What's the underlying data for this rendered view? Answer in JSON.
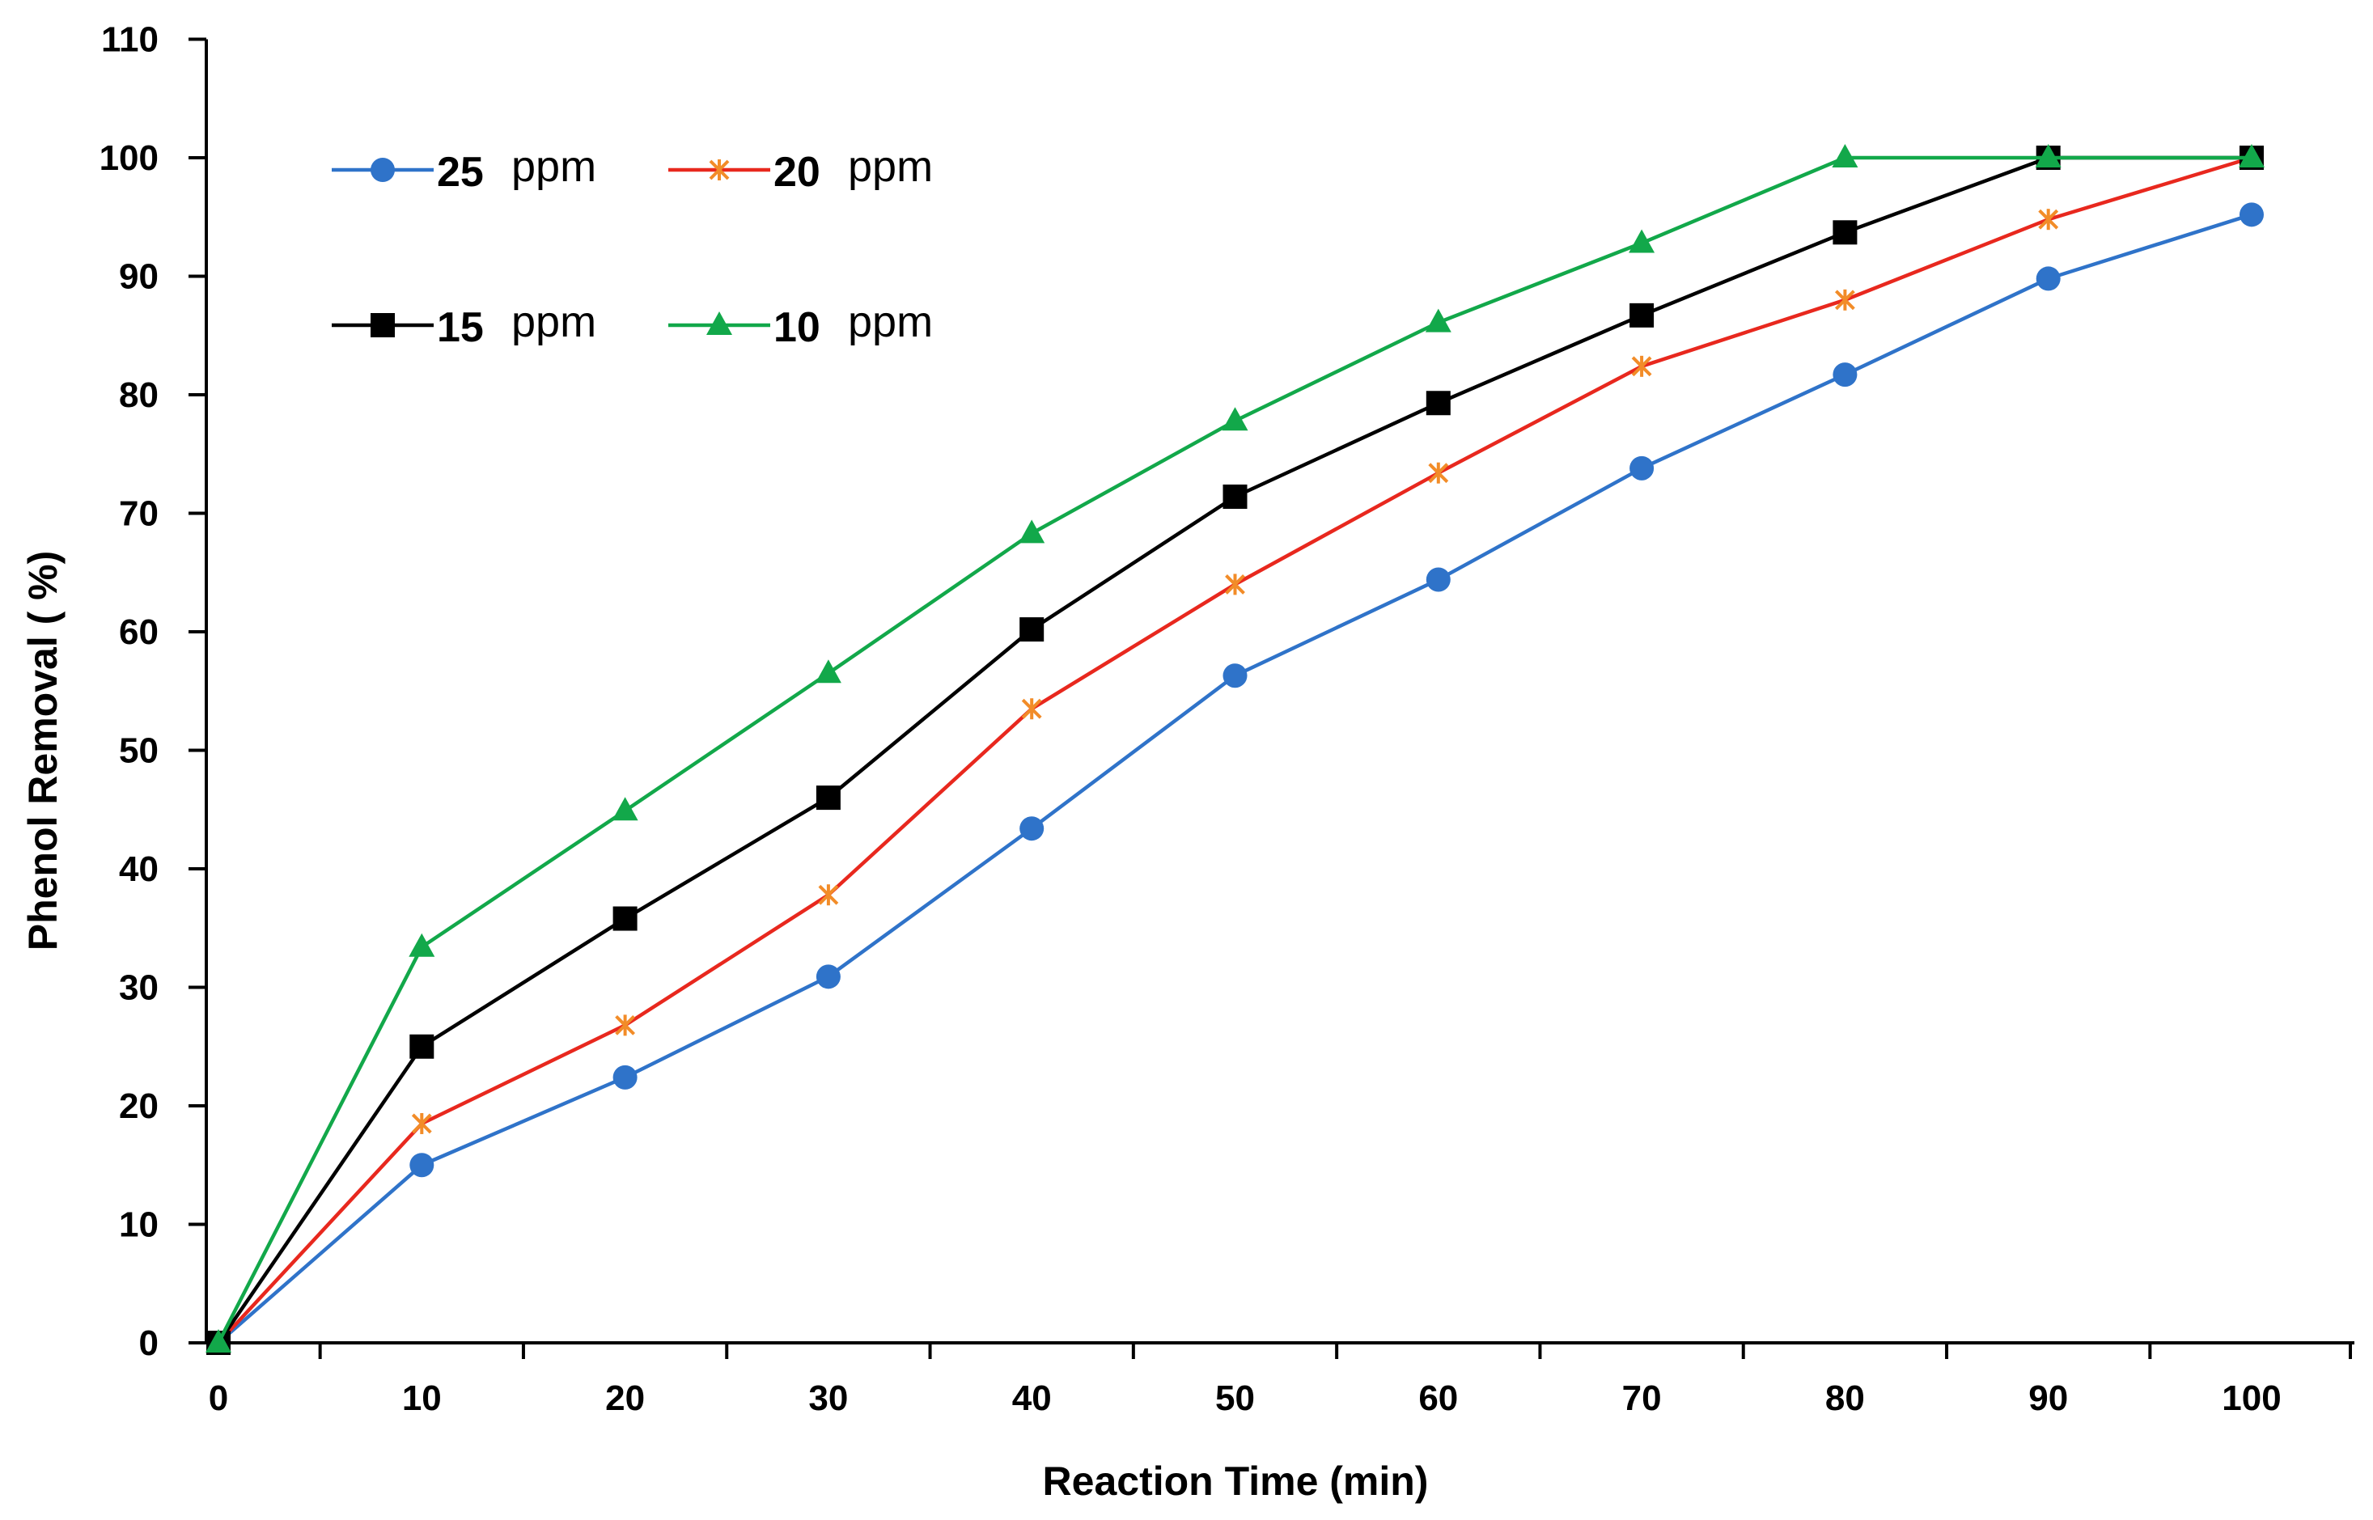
{
  "chart_data": {
    "type": "line",
    "title": "",
    "xlabel": "Reaction Time (min)",
    "ylabel": "Phenol Removal  ( %)",
    "x": [
      0,
      10,
      20,
      30,
      40,
      50,
      60,
      70,
      80,
      90,
      100
    ],
    "xticks": [
      "0",
      "10",
      "20",
      "30",
      "40",
      "50",
      "60",
      "70",
      "80",
      "90",
      "100"
    ],
    "yticks": [
      "0",
      "10",
      "20",
      "30",
      "40",
      "50",
      "60",
      "70",
      "80",
      "90",
      "100",
      "110"
    ],
    "xlim": [
      0,
      100
    ],
    "ylim": [
      0,
      110
    ],
    "grid": false,
    "legend_position": "top-left",
    "series": [
      {
        "name": "25 ppm",
        "label_num": "25",
        "label_unit": "ppm",
        "color": "#2F73C9",
        "marker": "circle",
        "values": [
          0,
          15,
          22.4,
          30.9,
          43.4,
          56.3,
          64.4,
          73.8,
          81.7,
          89.8,
          95.2
        ]
      },
      {
        "name": "20 ppm",
        "label_num": "20",
        "label_unit": "ppm",
        "color": "#E8281E",
        "marker_color": "#F28C28",
        "marker": "cross",
        "values": [
          0,
          18.5,
          26.8,
          37.8,
          53.5,
          64,
          73.4,
          82.4,
          88,
          94.8,
          100
        ]
      },
      {
        "name": "15 ppm",
        "label_num": "15",
        "label_unit": "ppm",
        "color": "#000000",
        "marker": "square",
        "values": [
          0,
          25,
          35.8,
          46,
          60.2,
          71.4,
          79.3,
          86.7,
          93.7,
          100,
          100
        ]
      },
      {
        "name": "10 ppm",
        "label_num": "10",
        "label_unit": "ppm",
        "color": "#12A84A",
        "marker": "triangle",
        "values": [
          0,
          33.4,
          44.9,
          56.5,
          68.3,
          77.8,
          86.1,
          92.8,
          100,
          100,
          100
        ]
      }
    ]
  }
}
